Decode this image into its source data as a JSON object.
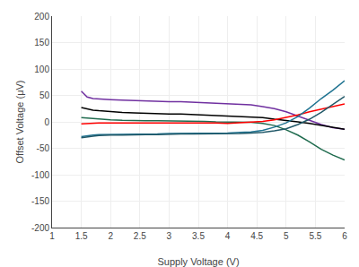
{
  "chart_data": {
    "type": "line",
    "xlabel": "Supply Voltage (V)",
    "ylabel": "Offset Voltage (μV)",
    "xlim": [
      1,
      6
    ],
    "ylim": [
      -200,
      200
    ],
    "xticks": [
      1,
      1.5,
      2,
      2.5,
      3,
      3.5,
      4,
      4.5,
      5,
      5.5,
      6
    ],
    "yticks": [
      -200,
      -150,
      -100,
      -50,
      0,
      50,
      100,
      150,
      200
    ],
    "grid": true,
    "series": [
      {
        "color": "#7030A0",
        "x": [
          1.5,
          1.55,
          1.6,
          1.7,
          1.8,
          1.9,
          2.0,
          2.2,
          2.4,
          2.6,
          2.8,
          3.0,
          3.2,
          3.4,
          3.6,
          3.8,
          4.0,
          4.2,
          4.4,
          4.6,
          4.8,
          5.0,
          5.2,
          5.4,
          5.6,
          5.8,
          6.0
        ],
        "values": [
          58,
          52,
          47,
          44,
          43,
          42,
          42,
          41,
          40,
          39,
          39,
          38,
          38,
          37,
          37,
          36,
          35,
          34,
          32,
          29,
          25,
          19,
          11,
          3,
          -5,
          -11,
          -14
        ]
      },
      {
        "color": "#000000",
        "x": [
          1.5,
          1.6,
          1.7,
          1.8,
          1.9,
          2.0,
          2.2,
          2.4,
          2.6,
          2.8,
          3.0,
          3.2,
          3.4,
          3.6,
          3.8,
          4.0,
          4.2,
          4.4,
          4.6,
          4.8,
          5.0,
          5.2,
          5.4,
          5.6,
          5.8,
          6.0
        ],
        "values": [
          27,
          24,
          22,
          21,
          20,
          19,
          18,
          17,
          16,
          16,
          15,
          15,
          14,
          14,
          13,
          12,
          11,
          10,
          8,
          5,
          3,
          0,
          -3,
          -7,
          -11,
          -14
        ]
      },
      {
        "color": "#1F6B4E",
        "x": [
          1.5,
          1.6,
          1.7,
          1.8,
          1.9,
          2.0,
          2.2,
          2.4,
          2.6,
          2.8,
          3.0,
          3.2,
          3.4,
          3.6,
          3.8,
          4.0,
          4.2,
          4.4,
          4.6,
          4.8,
          5.0,
          5.2,
          5.4,
          5.6,
          5.8,
          6.0
        ],
        "values": [
          8,
          7,
          6,
          5,
          5,
          4,
          3,
          2,
          2,
          2,
          2,
          1,
          1,
          1,
          0,
          0,
          -1,
          -1,
          -3,
          -7,
          -15,
          -25,
          -38,
          -52,
          -63,
          -72
        ]
      },
      {
        "color": "#FF0000",
        "x": [
          1.5,
          1.6,
          1.7,
          1.8,
          1.9,
          2.0,
          2.2,
          2.4,
          2.6,
          2.8,
          3.0,
          3.2,
          3.4,
          3.6,
          3.8,
          4.0,
          4.2,
          4.4,
          4.6,
          4.8,
          5.0,
          5.2,
          5.4,
          5.6,
          5.8,
          6.0
        ],
        "values": [
          -4,
          -3,
          -3,
          -2,
          -2,
          -2,
          -1,
          -1,
          -1,
          -1,
          -1,
          -1,
          -2,
          -2,
          -2,
          -3,
          -2,
          -1,
          1,
          4,
          8,
          13,
          19,
          24,
          29,
          34
        ]
      },
      {
        "color": "#1F7391",
        "x": [
          1.5,
          1.6,
          1.7,
          1.8,
          1.9,
          2.0,
          2.2,
          2.4,
          2.6,
          2.8,
          3.0,
          3.2,
          3.4,
          3.6,
          3.8,
          4.0,
          4.2,
          4.4,
          4.6,
          4.8,
          5.0,
          5.2,
          5.4,
          5.6,
          5.8,
          6.0
        ],
        "values": [
          -28,
          -26,
          -25,
          -24,
          -24,
          -24,
          -23,
          -23,
          -23,
          -23,
          -22,
          -22,
          -22,
          -22,
          -22,
          -21,
          -20,
          -19,
          -16,
          -10,
          -2,
          10,
          26,
          44,
          60,
          78
        ]
      },
      {
        "color": "#215868",
        "x": [
          1.5,
          1.6,
          1.7,
          1.8,
          1.9,
          2.0,
          2.2,
          2.4,
          2.6,
          2.8,
          3.0,
          3.2,
          3.4,
          3.6,
          3.8,
          4.0,
          4.2,
          4.4,
          4.6,
          4.8,
          5.0,
          5.2,
          5.4,
          5.6,
          5.8,
          6.0
        ],
        "values": [
          -30,
          -28,
          -27,
          -26,
          -25,
          -25,
          -25,
          -24,
          -24,
          -24,
          -23,
          -23,
          -23,
          -23,
          -23,
          -22,
          -22,
          -21,
          -20,
          -17,
          -13,
          -5,
          5,
          18,
          33,
          48
        ]
      }
    ]
  }
}
